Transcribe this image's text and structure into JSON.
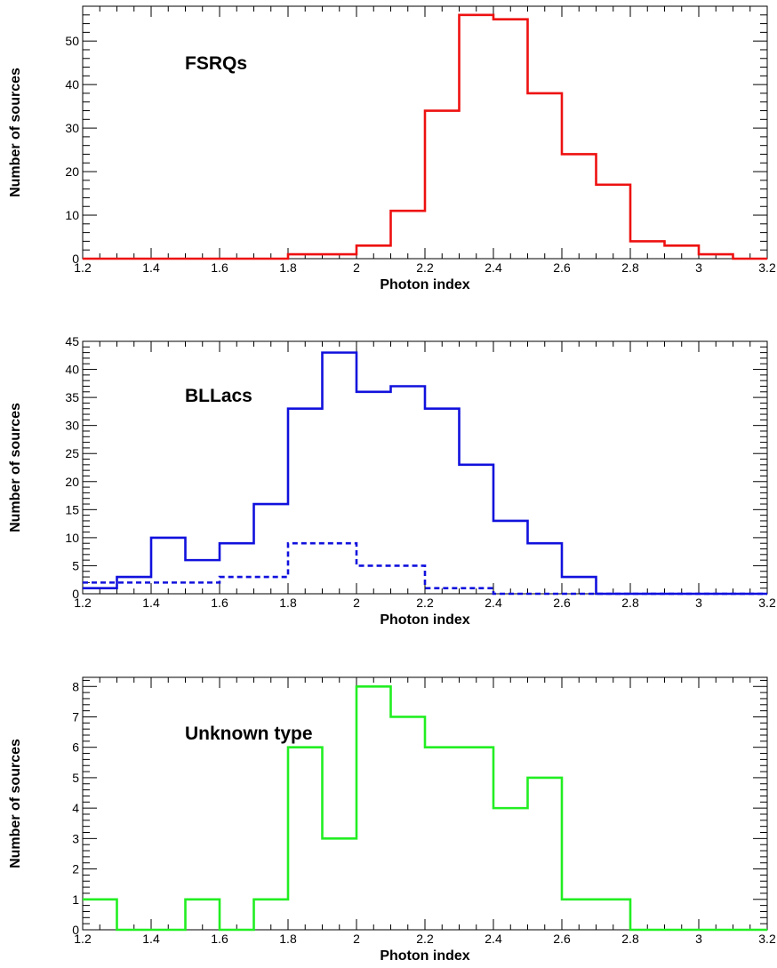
{
  "chart_data": [
    {
      "type": "histogram",
      "annotation": "FSRQs",
      "xlabel": "Photon index",
      "ylabel": "Number of sources",
      "xlim": [
        1.2,
        3.2
      ],
      "ylim": [
        0,
        58
      ],
      "x_ticks": [
        "1.2",
        "1.4",
        "1.6",
        "1.8",
        "2",
        "2.2",
        "2.4",
        "2.6",
        "2.8",
        "3",
        "3.2"
      ],
      "y_ticks": [
        "0",
        "10",
        "20",
        "30",
        "40",
        "50"
      ],
      "y_tick_values": [
        0,
        10,
        20,
        30,
        40,
        50
      ],
      "grid": false,
      "bin_edges": [
        1.2,
        1.3,
        1.4,
        1.5,
        1.6,
        1.7,
        1.8,
        1.9,
        2.0,
        2.1,
        2.2,
        2.3,
        2.4,
        2.5,
        2.6,
        2.7,
        2.8,
        2.9,
        3.0,
        3.1,
        3.2
      ],
      "series": [
        {
          "style": "solid",
          "color": "#ee1111",
          "values": [
            0,
            0,
            0,
            0,
            0,
            0,
            1,
            1,
            3,
            11,
            34,
            56,
            55,
            38,
            24,
            17,
            4,
            3,
            1,
            0
          ]
        }
      ]
    },
    {
      "type": "histogram",
      "annotation": "BLLacs",
      "xlabel": "Photon index",
      "ylabel": "Number of sources",
      "xlim": [
        1.2,
        3.2
      ],
      "ylim": [
        0,
        45
      ],
      "x_ticks": [
        "1.2",
        "1.4",
        "1.6",
        "1.8",
        "2",
        "2.2",
        "2.4",
        "2.6",
        "2.8",
        "3",
        "3.2"
      ],
      "y_ticks": [
        "0",
        "5",
        "10",
        "15",
        "20",
        "25",
        "30",
        "35",
        "40",
        "45"
      ],
      "y_tick_values": [
        0,
        5,
        10,
        15,
        20,
        25,
        30,
        35,
        40,
        45
      ],
      "grid": false,
      "bin_edges": [
        1.2,
        1.3,
        1.4,
        1.5,
        1.6,
        1.7,
        1.8,
        1.9,
        2.0,
        2.1,
        2.2,
        2.3,
        2.4,
        2.5,
        2.6,
        2.7,
        2.8,
        2.9,
        3.0,
        3.1,
        3.2
      ],
      "series": [
        {
          "style": "solid",
          "color": "#1111dd",
          "values": [
            1,
            3,
            10,
            6,
            9,
            16,
            33,
            43,
            36,
            37,
            33,
            23,
            13,
            9,
            3,
            0,
            0,
            0,
            0,
            0
          ]
        },
        {
          "style": "dashed",
          "color": "#1111dd",
          "values": [
            2,
            2,
            2,
            2,
            3,
            3,
            9,
            9,
            5,
            5,
            1,
            1,
            0,
            0,
            0,
            0,
            0,
            0,
            0,
            0
          ]
        }
      ]
    },
    {
      "type": "histogram",
      "annotation": "Unknown type",
      "xlabel": "Photon index",
      "ylabel": "Number of sources",
      "xlim": [
        1.2,
        3.2
      ],
      "ylim": [
        0,
        8.3
      ],
      "x_ticks": [
        "1.2",
        "1.4",
        "1.6",
        "1.8",
        "2",
        "2.2",
        "2.4",
        "2.6",
        "2.8",
        "3",
        "3.2"
      ],
      "y_ticks": [
        "0",
        "1",
        "2",
        "3",
        "4",
        "5",
        "6",
        "7",
        "8"
      ],
      "y_tick_values": [
        0,
        1,
        2,
        3,
        4,
        5,
        6,
        7,
        8
      ],
      "grid": false,
      "bin_edges": [
        1.2,
        1.3,
        1.4,
        1.5,
        1.6,
        1.7,
        1.8,
        1.9,
        2.0,
        2.1,
        2.2,
        2.3,
        2.4,
        2.5,
        2.6,
        2.7,
        2.8,
        2.9,
        3.0,
        3.1,
        3.2
      ],
      "series": [
        {
          "style": "solid",
          "color": "#22ee22",
          "values": [
            1,
            0,
            0,
            1,
            0,
            1,
            6,
            3,
            8,
            7,
            6,
            6,
            4,
            5,
            1,
            1,
            0,
            0,
            0,
            0
          ]
        }
      ]
    }
  ]
}
